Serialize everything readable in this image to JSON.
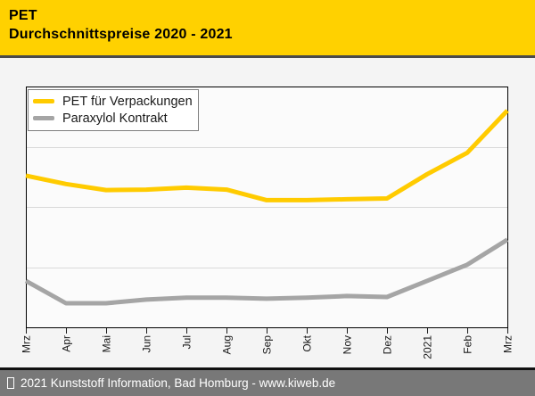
{
  "header": {
    "title": "PET",
    "subtitle": "Durchschnittspreise 2020 - 2021"
  },
  "footer": {
    "text": "2021 Kunststoff Information, Bad Homburg - www.kiweb.de",
    "prefix_glyph": "missing-glyph-box (tofu square before year)"
  },
  "colors": {
    "header_bg": "#ffd100",
    "pet_line": "#ffcb00",
    "paraxylol_line": "#a5a5a5",
    "footer_bg": "#787878",
    "divider": "#4a4a4a",
    "plot_bg": "#fbfbfb",
    "plot_border": "#000000",
    "gridline": "#d9d9d9",
    "page_bg": "#f4f4f4"
  },
  "chart_data": {
    "type": "line",
    "title": "PET Durchschnittspreise 2020 - 2021",
    "categories": [
      "Mrz",
      "Apr",
      "Mai",
      "Jun",
      "Jul",
      "Aug",
      "Sep",
      "Okt",
      "Nov",
      "Dez",
      "2021",
      "Feb",
      "Mrz"
    ],
    "x_axis": {
      "labels_rotated_deg": -90,
      "tick_marks": true
    },
    "y_axis": {
      "tick_labels_visible": false,
      "inner_gridlines": 3,
      "range_norm": [
        0,
        1
      ]
    },
    "legend_position": "top-left inside plot",
    "series": [
      {
        "name": "PET für Verpackungen",
        "color": "#ffcb00",
        "values_norm": [
          0.63,
          0.595,
          0.57,
          0.572,
          0.58,
          0.572,
          0.528,
          0.528,
          0.532,
          0.535,
          0.636,
          0.725,
          0.9
        ]
      },
      {
        "name": "Paraxylol Kontrakt",
        "color": "#a5a5a5",
        "values_norm": [
          0.193,
          0.1,
          0.1,
          0.115,
          0.123,
          0.123,
          0.119,
          0.123,
          0.13,
          0.126,
          0.193,
          0.26,
          0.364
        ]
      }
    ],
    "note": "No numeric y-axis shown in original; values_norm are fractions of plot height above the x-axis."
  }
}
